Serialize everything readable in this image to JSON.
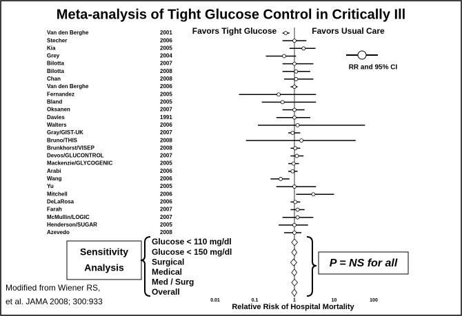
{
  "chart_data": {
    "type": "forest",
    "title": "Meta-analysis of Tight Glucose Control in Critically Ill",
    "favors_left": "Favors Tight Glucose",
    "favors_right": "Favors Usual Care",
    "legend": "RR and 95% CI",
    "xlabel": "Relative Risk of Hospital Mortality",
    "xscale": "log",
    "xlim": [
      0.01,
      100
    ],
    "xticks": [
      0.01,
      0.1,
      1,
      10,
      100
    ],
    "reference": 1,
    "color": "#000000",
    "categories": [
      "Van den Berghe",
      "Stecher",
      "Kia",
      "Grey",
      "Bilotta",
      "Bilotta",
      "Chan",
      "Van den Berghe",
      "Fernandez",
      "Bland",
      "Oksanen",
      "Davies",
      "Walters",
      "Gray/GIST-UK",
      "Bruno/THIS",
      "Brunkhorst/VISEP",
      "Devos/GLUCONTROL",
      "Mackenzie/GLYCOGENIC",
      "Arabi",
      "Wang",
      "Yu",
      "Mitchell",
      "DeLaRosa",
      "Farah",
      "McMullin/LOGIC",
      "Henderson/SUGAR",
      "Azevedo"
    ],
    "years": [
      "2001",
      "2006",
      "2005",
      "2004",
      "2007",
      "2008",
      "2008",
      "2006",
      "2005",
      "2005",
      "2007",
      "1991",
      "2006",
      "2007",
      "2008",
      "2008",
      "2007",
      "2005",
      "2006",
      "2006",
      "2005",
      "2006",
      "2006",
      "2007",
      "2007",
      "2005",
      "2008"
    ],
    "values": [
      0.6,
      1.0,
      1.7,
      0.55,
      1.0,
      1.1,
      1.1,
      1.0,
      0.4,
      0.5,
      1.0,
      1.0,
      1.2,
      0.9,
      1.5,
      1.05,
      1.15,
      0.95,
      0.9,
      0.45,
      1.0,
      3.0,
      1.05,
      1.2,
      1.2,
      1.0,
      1.0
    ],
    "lower": [
      0.5,
      0.5,
      0.75,
      0.19,
      0.5,
      0.5,
      0.55,
      0.8,
      0.04,
      0.15,
      0.5,
      0.35,
      0.12,
      0.7,
      0.06,
      0.8,
      0.8,
      0.7,
      0.7,
      0.25,
      0.35,
      1.1,
      0.8,
      0.8,
      0.5,
      0.4,
      0.55
    ],
    "upper": [
      0.75,
      2.0,
      3.4,
      1.1,
      3.0,
      2.5,
      3.0,
      1.2,
      3.5,
      3.5,
      1.8,
      2.5,
      60,
      1.4,
      35,
      1.4,
      1.7,
      1.3,
      1.2,
      0.75,
      3.5,
      10,
      1.4,
      1.8,
      3.0,
      2.2,
      1.5
    ],
    "sensitivity": {
      "title": [
        "Sensitivity",
        "Analysis"
      ],
      "categories": [
        "Glucose < 110 mg/dl",
        "Glucose < 150 mg/dl",
        "Surgical",
        "Medical",
        "Med / Surg",
        "Overall"
      ],
      "values": [
        1.0,
        1.0,
        0.95,
        1.0,
        1.0,
        1.0
      ],
      "lower": [
        0.85,
        0.85,
        0.8,
        0.85,
        0.85,
        0.85
      ],
      "upper": [
        1.2,
        1.15,
        1.15,
        1.15,
        1.2,
        1.15
      ],
      "note": "P = NS for all"
    },
    "source": [
      "Modified from Wiener RS,",
      "et al. JAMA 2008; 300:933"
    ]
  }
}
